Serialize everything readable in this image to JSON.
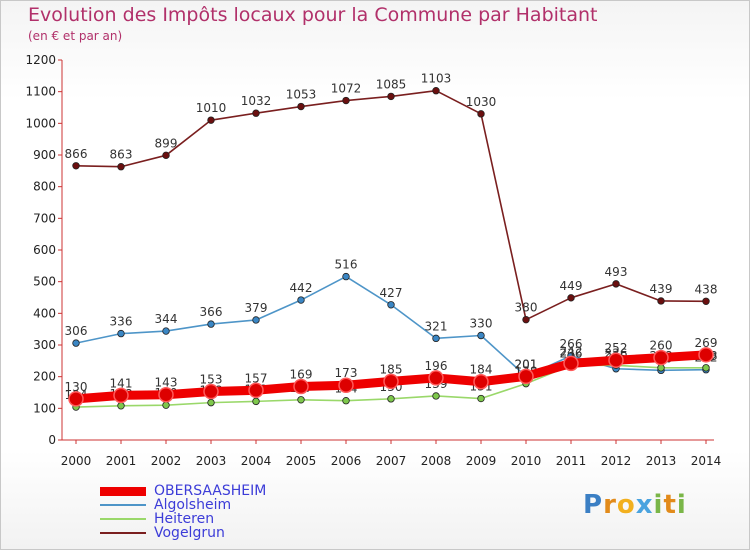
{
  "chart_data": {
    "type": "line",
    "title": "Evolution des Impôts locaux pour la Commune par Habitant",
    "subtitle": "(en € et par an)",
    "x": [
      "2000",
      "2001",
      "2002",
      "2003",
      "2004",
      "2005",
      "2006",
      "2007",
      "2008",
      "2009",
      "2010",
      "2011",
      "2012",
      "2013",
      "2014"
    ],
    "ylim": [
      0,
      1200
    ],
    "yticks": [
      0,
      100,
      200,
      300,
      400,
      500,
      600,
      700,
      800,
      900,
      1000,
      1100,
      1200
    ],
    "grid": false,
    "legend_position": "bottom-left",
    "series": [
      {
        "name": "Vogelgrun",
        "color": "#7a1f1f",
        "marker": "#6b0f0f",
        "values": [
          866,
          863,
          899,
          1010,
          1032,
          1053,
          1072,
          1085,
          1103,
          1030,
          380,
          449,
          493,
          439,
          438
        ],
        "labels": [
          "866",
          "863",
          "899",
          "1010",
          "1032",
          "1053",
          "1072",
          "1085",
          "1103",
          "1030",
          "380",
          "449",
          "493",
          "439",
          "438"
        ]
      },
      {
        "name": "Algolsheim",
        "color": "#4e95c8",
        "marker": "#3a86c4",
        "values": [
          306,
          336,
          344,
          366,
          379,
          442,
          516,
          427,
          321,
          330,
          201,
          266,
          225,
          220,
          222
        ],
        "labels": [
          "306",
          "336",
          "344",
          "366",
          "379",
          "442",
          "516",
          "427",
          "321",
          "330",
          "201",
          "266",
          "225",
          "220",
          "222"
        ]
      },
      {
        "name": "Heiteren",
        "color": "#9ad86a",
        "marker": "#7ec84c",
        "values": [
          104,
          108,
          110,
          118,
          122,
          127,
          124,
          130,
          139,
          131,
          178,
          236,
          236,
          228,
          228
        ],
        "labels": [
          "104",
          "108",
          "110",
          "118",
          "122",
          "127",
          "124",
          "130",
          "139",
          "131",
          "178",
          "236",
          "236",
          "228",
          "228"
        ]
      },
      {
        "name": "OBERSAASHEIM",
        "color": "#ee0000",
        "marker": "#dd0000",
        "values": [
          130,
          141,
          143,
          153,
          157,
          169,
          173,
          185,
          196,
          184,
          201,
          242,
          252,
          260,
          269
        ],
        "labels": [
          "130",
          "141",
          "143",
          "153",
          "157",
          "169",
          "173",
          "185",
          "196",
          "184",
          "201",
          "242",
          "252",
          "260",
          "269"
        ]
      }
    ]
  },
  "legend": {
    "items": [
      {
        "label": "OBERSAASHEIM",
        "color": "#ee0000",
        "text_color": "#3c3cd8"
      },
      {
        "label": "Algolsheim",
        "color": "#4e95c8",
        "text_color": "#3c3cd8"
      },
      {
        "label": "Heiteren",
        "color": "#9ad86a",
        "text_color": "#3c3cd8"
      },
      {
        "label": "Vogelgrun",
        "color": "#7a1f1f",
        "text_color": "#3c3cd8"
      }
    ]
  },
  "logo": {
    "letters": [
      "P",
      "r",
      "o",
      "x",
      "i",
      "t",
      "i"
    ],
    "colors": [
      "#3b7fc4",
      "#e28b1b",
      "#f2b01e",
      "#4aa3df",
      "#7ab648",
      "#e28b1b",
      "#7ab648"
    ]
  }
}
